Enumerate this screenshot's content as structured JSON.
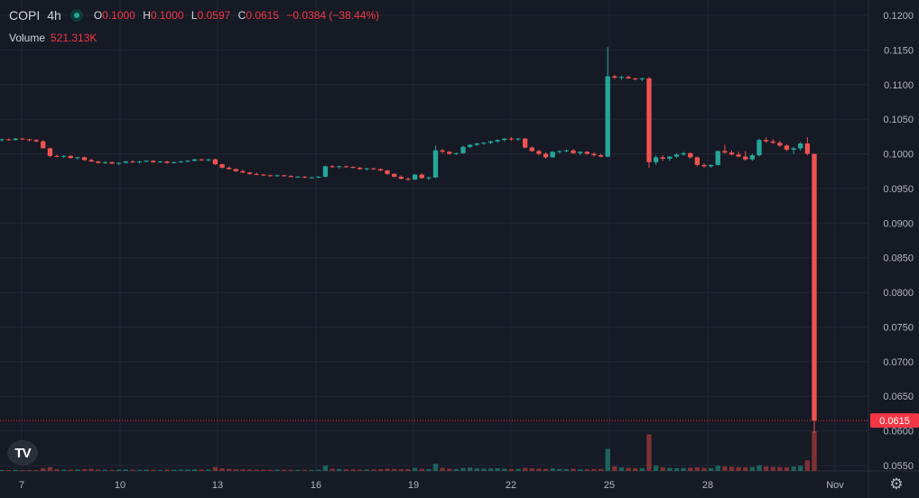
{
  "header": {
    "symbol": "COPI",
    "timeframe": "4h",
    "open_label": "O",
    "open": "0.1000",
    "high_label": "H",
    "high": "0.1000",
    "low_label": "L",
    "low": "0.0597",
    "close_label": "C",
    "close": "0.0615",
    "change": "−0.0384 (−38.44%)",
    "volume_label": "Volume",
    "volume": "521.313K"
  },
  "colors": {
    "up": "#26a69a",
    "down": "#ef5350",
    "background": "#161a25",
    "grid": "#232733",
    "text": "#b2b5be",
    "price_tag": "#f23645"
  },
  "icons": {
    "logo": "tradingview-logo-icon",
    "settings": "gear-icon"
  },
  "chart_data": {
    "type": "candlestick",
    "y_ticks": [
      "0.1200",
      "0.1150",
      "0.1100",
      "0.1050",
      "0.1000",
      "0.0950",
      "0.0900",
      "0.0850",
      "0.0800",
      "0.0750",
      "0.0700",
      "0.0650",
      "0.0600",
      "0.0550"
    ],
    "ylim": [
      0.0545,
      0.121
    ],
    "x_ticks": [
      "7",
      "10",
      "13",
      "16",
      "19",
      "22",
      "25",
      "28",
      "Nov"
    ],
    "last_price": 0.0615,
    "last_price_label": "0.0615",
    "grid": true,
    "candles": [
      [
        0.102,
        0.1022,
        0.1018,
        0.1021
      ],
      [
        0.1021,
        0.1022,
        0.1019,
        0.102
      ],
      [
        0.102,
        0.1023,
        0.1019,
        0.1022
      ],
      [
        0.1022,
        0.1023,
        0.102,
        0.1021
      ],
      [
        0.1021,
        0.1022,
        0.1018,
        0.102
      ],
      [
        0.102,
        0.1021,
        0.1017,
        0.1018
      ],
      [
        0.1018,
        0.102,
        0.1008,
        0.1008
      ],
      [
        0.1008,
        0.1009,
        0.0995,
        0.0997
      ],
      [
        0.0997,
        0.0999,
        0.0995,
        0.0996
      ],
      [
        0.0996,
        0.0998,
        0.0994,
        0.0997
      ],
      [
        0.0997,
        0.0998,
        0.0993,
        0.0994
      ],
      [
        0.0994,
        0.0996,
        0.0992,
        0.0995
      ],
      [
        0.0995,
        0.0996,
        0.099,
        0.0991
      ],
      [
        0.0991,
        0.0993,
        0.0988,
        0.0989
      ],
      [
        0.0989,
        0.099,
        0.0986,
        0.0987
      ],
      [
        0.0987,
        0.0989,
        0.0985,
        0.0988
      ],
      [
        0.0988,
        0.0989,
        0.0985,
        0.0986
      ],
      [
        0.0986,
        0.0988,
        0.0984,
        0.0987
      ],
      [
        0.0987,
        0.099,
        0.0986,
        0.0989
      ],
      [
        0.0989,
        0.0991,
        0.0987,
        0.0988
      ],
      [
        0.0988,
        0.099,
        0.0986,
        0.0989
      ],
      [
        0.0989,
        0.0991,
        0.0988,
        0.099
      ],
      [
        0.099,
        0.0991,
        0.0987,
        0.0988
      ],
      [
        0.0988,
        0.099,
        0.0987,
        0.0989
      ],
      [
        0.0989,
        0.099,
        0.0986,
        0.0987
      ],
      [
        0.0987,
        0.0989,
        0.0986,
        0.0988
      ],
      [
        0.0988,
        0.099,
        0.0987,
        0.0989
      ],
      [
        0.0989,
        0.0991,
        0.0988,
        0.099
      ],
      [
        0.099,
        0.0993,
        0.0989,
        0.0992
      ],
      [
        0.0992,
        0.0993,
        0.099,
        0.0991
      ],
      [
        0.0991,
        0.0993,
        0.0989,
        0.0992
      ],
      [
        0.0992,
        0.0993,
        0.0984,
        0.0985
      ],
      [
        0.0985,
        0.0986,
        0.0979,
        0.098
      ],
      [
        0.098,
        0.0982,
        0.0977,
        0.0978
      ],
      [
        0.0978,
        0.0979,
        0.0974,
        0.0975
      ],
      [
        0.0975,
        0.0977,
        0.0972,
        0.0973
      ],
      [
        0.0973,
        0.0974,
        0.097,
        0.0971
      ],
      [
        0.0971,
        0.0973,
        0.0969,
        0.097
      ],
      [
        0.097,
        0.0971,
        0.0968,
        0.0969
      ],
      [
        0.0969,
        0.097,
        0.0967,
        0.0968
      ],
      [
        0.0968,
        0.097,
        0.0967,
        0.0969
      ],
      [
        0.0969,
        0.097,
        0.0967,
        0.0968
      ],
      [
        0.0968,
        0.0969,
        0.0966,
        0.0967
      ],
      [
        0.0967,
        0.0968,
        0.0966,
        0.0967
      ],
      [
        0.0967,
        0.0968,
        0.0965,
        0.0966
      ],
      [
        0.0966,
        0.0967,
        0.0965,
        0.0966
      ],
      [
        0.0966,
        0.0968,
        0.0965,
        0.0967
      ],
      [
        0.0967,
        0.0983,
        0.0966,
        0.0982
      ],
      [
        0.0982,
        0.0984,
        0.098,
        0.0981
      ],
      [
        0.0981,
        0.0983,
        0.0979,
        0.0982
      ],
      [
        0.0982,
        0.0983,
        0.098,
        0.0981
      ],
      [
        0.0981,
        0.0982,
        0.0979,
        0.098
      ],
      [
        0.098,
        0.0981,
        0.0977,
        0.0978
      ],
      [
        0.0978,
        0.098,
        0.0976,
        0.0979
      ],
      [
        0.0979,
        0.098,
        0.0977,
        0.0978
      ],
      [
        0.0978,
        0.0979,
        0.0975,
        0.0976
      ],
      [
        0.0976,
        0.0977,
        0.097,
        0.0971
      ],
      [
        0.0971,
        0.0972,
        0.0966,
        0.0967
      ],
      [
        0.0967,
        0.0969,
        0.0963,
        0.0964
      ],
      [
        0.0964,
        0.0966,
        0.0961,
        0.0963
      ],
      [
        0.0963,
        0.0971,
        0.0962,
        0.097
      ],
      [
        0.097,
        0.0972,
        0.0964,
        0.0965
      ],
      [
        0.0965,
        0.0967,
        0.0962,
        0.0966
      ],
      [
        0.0966,
        0.1012,
        0.0965,
        0.1005
      ],
      [
        0.1005,
        0.1007,
        0.1001,
        0.1003
      ],
      [
        0.1003,
        0.1004,
        0.0999,
        0.1
      ],
      [
        0.1,
        0.1002,
        0.0998,
        0.1001
      ],
      [
        0.1001,
        0.1012,
        0.1,
        0.101
      ],
      [
        0.101,
        0.1014,
        0.1008,
        0.1013
      ],
      [
        0.1013,
        0.1016,
        0.1011,
        0.1015
      ],
      [
        0.1015,
        0.1017,
        0.1013,
        0.1016
      ],
      [
        0.1016,
        0.1019,
        0.1014,
        0.1018
      ],
      [
        0.1018,
        0.1021,
        0.1016,
        0.102
      ],
      [
        0.102,
        0.1023,
        0.1018,
        0.1022
      ],
      [
        0.1022,
        0.1024,
        0.1019,
        0.1021
      ],
      [
        0.1021,
        0.1023,
        0.1019,
        0.1022
      ],
      [
        0.1022,
        0.1023,
        0.1008,
        0.1009
      ],
      [
        0.1009,
        0.1011,
        0.1003,
        0.1004
      ],
      [
        0.1004,
        0.1006,
        0.0998,
        0.1
      ],
      [
        0.1,
        0.1002,
        0.0993,
        0.0995
      ],
      [
        0.0995,
        0.1004,
        0.0994,
        0.1003
      ],
      [
        0.1003,
        0.1005,
        0.1001,
        0.1004
      ],
      [
        0.1004,
        0.1006,
        0.1002,
        0.1005
      ],
      [
        0.1005,
        0.1007,
        0.1,
        0.1001
      ],
      [
        0.1001,
        0.1004,
        0.0998,
        0.1003
      ],
      [
        0.1003,
        0.1004,
        0.0999,
        0.1
      ],
      [
        0.1,
        0.1002,
        0.0996,
        0.0998
      ],
      [
        0.0998,
        0.1,
        0.0995,
        0.0996
      ],
      [
        0.0996,
        0.1154,
        0.0995,
        0.1112
      ],
      [
        0.1112,
        0.1114,
        0.1108,
        0.111
      ],
      [
        0.111,
        0.1113,
        0.1107,
        0.1111
      ],
      [
        0.1111,
        0.1113,
        0.1108,
        0.1109
      ],
      [
        0.1109,
        0.111,
        0.1106,
        0.1108
      ],
      [
        0.1108,
        0.111,
        0.1105,
        0.1109
      ],
      [
        0.1109,
        0.1111,
        0.098,
        0.0988
      ],
      [
        0.0988,
        0.0998,
        0.0984,
        0.0995
      ],
      [
        0.0995,
        0.0998,
        0.099,
        0.0993
      ],
      [
        0.0993,
        0.0997,
        0.099,
        0.0996
      ],
      [
        0.0996,
        0.1001,
        0.0994,
        0.0999
      ],
      [
        0.0999,
        0.1003,
        0.0997,
        0.1001
      ],
      [
        0.1001,
        0.1002,
        0.0993,
        0.0995
      ],
      [
        0.0995,
        0.0996,
        0.0982,
        0.0984
      ],
      [
        0.0984,
        0.0986,
        0.098,
        0.0982
      ],
      [
        0.0982,
        0.0985,
        0.098,
        0.0984
      ],
      [
        0.0984,
        0.1005,
        0.0983,
        0.1004
      ],
      [
        0.1004,
        0.1013,
        0.1,
        0.1002
      ],
      [
        0.1002,
        0.1005,
        0.0998,
        0.0999
      ],
      [
        0.0999,
        0.1003,
        0.0995,
        0.0996
      ],
      [
        0.0996,
        0.1004,
        0.099,
        0.0992
      ],
      [
        0.0992,
        0.1,
        0.099,
        0.0998
      ],
      [
        0.0998,
        0.1022,
        0.0996,
        0.102
      ],
      [
        0.102,
        0.1024,
        0.1016,
        0.1018
      ],
      [
        0.1018,
        0.1021,
        0.1014,
        0.1016
      ],
      [
        0.1016,
        0.1019,
        0.101,
        0.1012
      ],
      [
        0.1012,
        0.1014,
        0.1004,
        0.1006
      ],
      [
        0.1006,
        0.101,
        0.1,
        0.1008
      ],
      [
        0.1008,
        0.1017,
        0.1005,
        0.1015
      ],
      [
        0.1015,
        0.1024,
        0.0998,
        0.1
      ],
      [
        0.1,
        0.1,
        0.0597,
        0.0615
      ]
    ],
    "volume_max": 521313,
    "volumes": [
      12000,
      10000,
      14000,
      9000,
      8000,
      11000,
      36000,
      50000,
      22000,
      18000,
      16000,
      20000,
      25000,
      28000,
      19000,
      15000,
      14000,
      17000,
      20000,
      16000,
      15000,
      18000,
      14000,
      13000,
      16000,
      15000,
      17000,
      19000,
      22000,
      18000,
      20000,
      52000,
      35000,
      28000,
      22000,
      20000,
      18000,
      16000,
      15000,
      14000,
      17000,
      15000,
      14000,
      13000,
      15000,
      14000,
      16000,
      70000,
      30000,
      25000,
      22000,
      20000,
      18000,
      21000,
      19000,
      24000,
      30000,
      26000,
      22000,
      25000,
      40000,
      28000,
      24000,
      95000,
      40000,
      30000,
      26000,
      38000,
      45000,
      34000,
      30000,
      32000,
      36000,
      30000,
      25000,
      28000,
      40000,
      35000,
      30000,
      28000,
      33000,
      26000,
      24000,
      30000,
      22000,
      20000,
      25000,
      27000,
      290000,
      60000,
      45000,
      40000,
      35000,
      38000,
      480000,
      70000,
      45000,
      40000,
      36000,
      38000,
      42000,
      48000,
      40000,
      38000,
      70000,
      60000,
      55000,
      50000,
      48000,
      52000,
      75000,
      60000,
      55000,
      50000,
      48000,
      58000,
      68000,
      140000,
      521313
    ]
  }
}
